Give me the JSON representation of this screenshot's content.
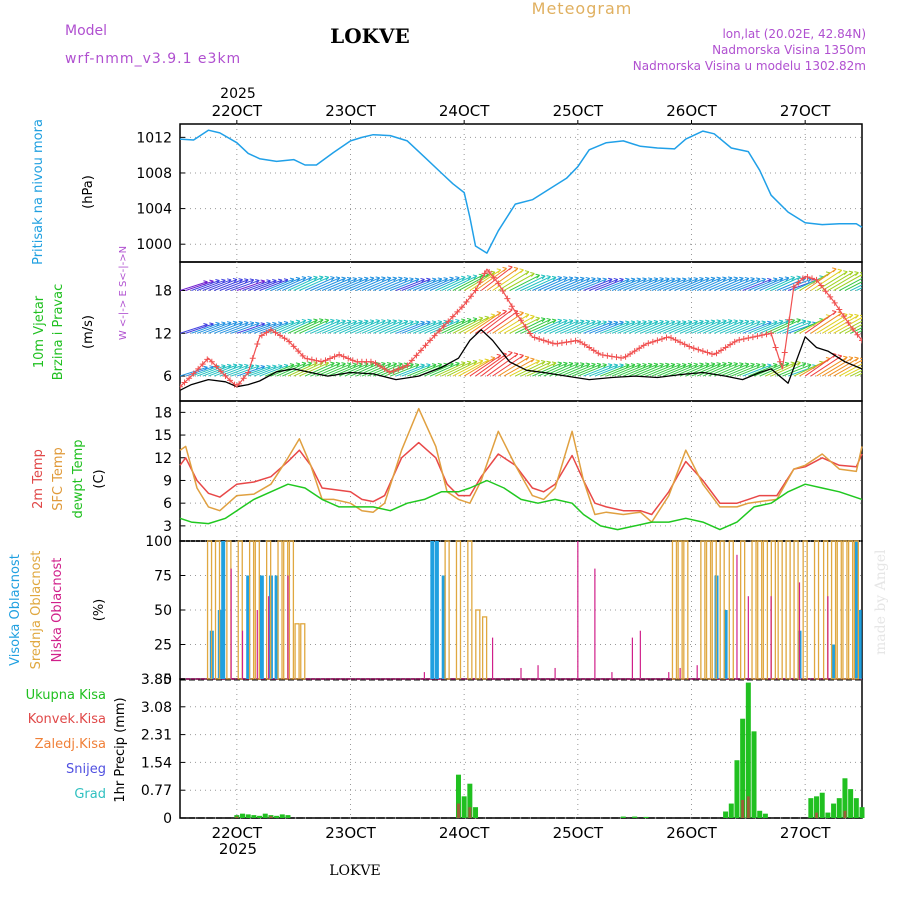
{
  "chart_data": {
    "type": "line",
    "header": {
      "model_label": "Model",
      "model_name": "wrf-nmm_v3.9.1 e3km",
      "station": "LOKVE",
      "title": "Meteogram",
      "lonlat": "lon,lat (20.02E, 42.84N)",
      "altitude": "Nadmorska Visina 1350m",
      "model_altitude": "Nadmorska Visina u modelu 1302.82m",
      "year": "2025",
      "signature": "made by Angel"
    },
    "time": {
      "start_day": 21.5,
      "end_day": 27.5,
      "month": "OCT"
    },
    "dates": [
      "22OCT",
      "23OCT",
      "24OCT",
      "25OCT",
      "26OCT",
      "27OCT"
    ],
    "pressure": {
      "label": "Pritisak na nivou mora",
      "unit": "(hPa)",
      "ylim": [
        998,
        1013.5
      ],
      "ticks": [
        1000,
        1004,
        1008,
        1012
      ],
      "t": [
        21.5,
        21.62,
        21.75,
        21.85,
        22.0,
        22.1,
        22.2,
        22.35,
        22.5,
        22.6,
        22.7,
        22.85,
        23.0,
        23.1,
        23.2,
        23.35,
        23.5,
        23.65,
        23.8,
        23.9,
        24.0,
        24.05,
        24.1,
        24.2,
        24.3,
        24.45,
        24.6,
        24.75,
        24.9,
        25.0,
        25.1,
        25.25,
        25.4,
        25.55,
        25.7,
        25.85,
        25.95,
        26.1,
        26.2,
        26.35,
        26.5,
        26.6,
        26.7,
        26.85,
        27.0,
        27.15,
        27.3,
        27.45,
        27.5
      ],
      "values": [
        1011.8,
        1011.7,
        1012.8,
        1012.5,
        1011.4,
        1010.2,
        1009.6,
        1009.3,
        1009.5,
        1008.9,
        1008.9,
        1010.3,
        1011.6,
        1012.0,
        1012.3,
        1012.2,
        1011.6,
        1009.8,
        1008.0,
        1006.8,
        1005.8,
        1003.0,
        999.8,
        999.0,
        1001.5,
        1004.5,
        1005.0,
        1006.2,
        1007.4,
        1008.7,
        1010.6,
        1011.4,
        1011.6,
        1011.0,
        1010.8,
        1010.7,
        1011.8,
        1012.7,
        1012.4,
        1010.8,
        1010.4,
        1008.3,
        1005.5,
        1003.6,
        1002.4,
        1002.2,
        1002.3,
        1002.3,
        1001.9
      ]
    },
    "wind": {
      "label_line1": "10m Vjetar",
      "label_line2": "Brzina i Pravac",
      "unit": "(m/s)",
      "compass": "W <-|-> E   S<-|->N",
      "ylim": [
        2.5,
        22
      ],
      "ticks": [
        6,
        12,
        18
      ],
      "speed": {
        "t": [
          21.5,
          21.6,
          21.75,
          21.9,
          22.0,
          22.1,
          22.2,
          22.35,
          22.5,
          22.65,
          22.8,
          23.0,
          23.2,
          23.4,
          23.6,
          23.8,
          23.95,
          24.05,
          24.15,
          24.25,
          24.4,
          24.55,
          24.7,
          24.9,
          25.1,
          25.3,
          25.5,
          25.7,
          25.9,
          26.1,
          26.3,
          26.45,
          26.6,
          26.7,
          26.85,
          27.0,
          27.1,
          27.2,
          27.35,
          27.5
        ],
        "values": [
          4.0,
          4.8,
          5.5,
          5.2,
          4.5,
          4.8,
          5.3,
          6.6,
          7.0,
          6.5,
          6.0,
          6.5,
          6.3,
          5.5,
          6.0,
          7.2,
          8.5,
          11.0,
          12.5,
          11.0,
          8.0,
          6.8,
          6.5,
          6.0,
          5.5,
          5.8,
          6.0,
          5.8,
          6.2,
          6.5,
          6.0,
          5.5,
          6.5,
          7.0,
          5.0,
          11.5,
          10.0,
          9.5,
          8.0,
          7.0
        ]
      },
      "gust": {
        "t": [
          21.5,
          21.6,
          21.75,
          21.9,
          22.0,
          22.1,
          22.2,
          22.3,
          22.45,
          22.6,
          22.75,
          22.9,
          23.05,
          23.2,
          23.35,
          23.5,
          23.7,
          23.85,
          24.0,
          24.1,
          24.2,
          24.3,
          24.45,
          24.6,
          24.8,
          25.0,
          25.2,
          25.4,
          25.6,
          25.8,
          26.0,
          26.2,
          26.4,
          26.55,
          26.7,
          26.8,
          26.9,
          27.0,
          27.1,
          27.25,
          27.4,
          27.5
        ],
        "values": [
          4.5,
          6.0,
          8.5,
          6.0,
          4.5,
          6.5,
          11.5,
          12.5,
          11.0,
          8.5,
          8.0,
          9.0,
          8.0,
          8.0,
          6.5,
          7.5,
          11.0,
          13.5,
          16.0,
          18.0,
          21.0,
          19.0,
          15.0,
          11.5,
          10.5,
          11.0,
          9.0,
          8.5,
          10.5,
          11.5,
          10.0,
          9.0,
          11.0,
          11.5,
          12.0,
          7.0,
          18.5,
          20.0,
          19.5,
          16.5,
          13.0,
          11.0
        ]
      }
    },
    "temperature": {
      "unit": "(C)",
      "ylim": [
        1,
        19.5
      ],
      "ticks": [
        3,
        6,
        9,
        12,
        15,
        18
      ],
      "series": [
        {
          "name": "2m Temp",
          "color": "#e84848",
          "t": [
            21.5,
            21.55,
            21.65,
            21.75,
            21.85,
            22.0,
            22.15,
            22.3,
            22.45,
            22.55,
            22.65,
            22.75,
            22.85,
            23.0,
            23.1,
            23.2,
            23.3,
            23.45,
            23.6,
            23.75,
            23.85,
            23.95,
            24.05,
            24.15,
            24.3,
            24.45,
            24.6,
            24.7,
            24.8,
            24.95,
            25.05,
            25.15,
            25.25,
            25.4,
            25.55,
            25.65,
            25.8,
            25.95,
            26.1,
            26.25,
            26.4,
            26.5,
            26.6,
            26.75,
            26.9,
            27.0,
            27.15,
            27.3,
            27.45,
            27.5
          ],
          "values": [
            11.0,
            12.0,
            9.0,
            7.3,
            6.8,
            8.5,
            8.8,
            9.5,
            11.5,
            13.0,
            11.0,
            8.0,
            7.8,
            7.5,
            6.5,
            6.2,
            7.0,
            12.0,
            14.0,
            12.0,
            8.5,
            7.0,
            7.0,
            9.5,
            12.5,
            11.0,
            8.0,
            7.5,
            8.5,
            12.3,
            9.0,
            6.0,
            5.5,
            5.0,
            5.0,
            4.5,
            7.5,
            11.5,
            9.0,
            6.0,
            6.0,
            6.5,
            7.0,
            7.0,
            10.5,
            10.8,
            12.0,
            11.0,
            10.8,
            12.5
          ]
        },
        {
          "name": "SFC Temp",
          "color": "#e0a040",
          "t": [
            21.5,
            21.55,
            21.65,
            21.75,
            21.85,
            22.0,
            22.15,
            22.3,
            22.45,
            22.55,
            22.65,
            22.75,
            22.85,
            23.0,
            23.1,
            23.2,
            23.3,
            23.45,
            23.6,
            23.75,
            23.85,
            23.95,
            24.05,
            24.15,
            24.3,
            24.45,
            24.6,
            24.7,
            24.8,
            24.95,
            25.05,
            25.15,
            25.25,
            25.4,
            25.55,
            25.65,
            25.8,
            25.95,
            26.1,
            26.25,
            26.4,
            26.5,
            26.6,
            26.75,
            26.9,
            27.0,
            27.15,
            27.3,
            27.45,
            27.5
          ],
          "values": [
            13.0,
            13.5,
            8.0,
            5.5,
            5.0,
            7.0,
            7.2,
            8.5,
            12.0,
            14.5,
            11.0,
            6.5,
            6.5,
            6.0,
            5.0,
            4.8,
            6.0,
            13.0,
            18.5,
            13.5,
            7.5,
            6.5,
            6.0,
            9.0,
            15.5,
            11.0,
            7.0,
            6.5,
            8.0,
            15.5,
            9.0,
            4.5,
            4.8,
            4.5,
            4.8,
            3.5,
            7.0,
            13.0,
            8.5,
            5.5,
            5.5,
            6.0,
            6.2,
            6.5,
            10.5,
            11.0,
            12.5,
            10.5,
            10.2,
            13.5
          ]
        },
        {
          "name": "dewpt Temp",
          "color": "#20c820",
          "t": [
            21.5,
            21.6,
            21.75,
            21.9,
            22.0,
            22.15,
            22.3,
            22.45,
            22.6,
            22.75,
            22.9,
            23.05,
            23.2,
            23.35,
            23.5,
            23.65,
            23.8,
            23.95,
            24.05,
            24.2,
            24.35,
            24.5,
            24.65,
            24.8,
            24.95,
            25.05,
            25.2,
            25.35,
            25.5,
            25.65,
            25.8,
            25.95,
            26.1,
            26.25,
            26.4,
            26.55,
            26.7,
            26.85,
            27.0,
            27.15,
            27.3,
            27.5
          ],
          "values": [
            4.0,
            3.5,
            3.3,
            4.0,
            5.0,
            6.5,
            7.5,
            8.5,
            8.0,
            6.5,
            5.5,
            5.5,
            5.5,
            5.0,
            6.0,
            6.5,
            7.5,
            7.5,
            8.0,
            9.0,
            8.0,
            6.5,
            6.0,
            6.5,
            6.0,
            4.5,
            3.0,
            2.5,
            3.0,
            3.5,
            3.5,
            4.0,
            3.5,
            2.5,
            3.5,
            5.5,
            6.0,
            7.5,
            8.5,
            8.0,
            7.5,
            6.5
          ]
        }
      ]
    },
    "cloud": {
      "unit": "(%)",
      "ylim": [
        0,
        100
      ],
      "ticks": [
        0,
        25,
        50,
        75,
        100
      ],
      "series": [
        {
          "name": "Visoka Oblacnost",
          "color": "#20a0e0",
          "bars": [
            [
              21.78,
              35
            ],
            [
              21.85,
              50
            ],
            [
              21.88,
              100
            ],
            [
              22.1,
              75
            ],
            [
              22.22,
              75
            ],
            [
              22.3,
              75
            ],
            [
              22.35,
              75
            ],
            [
              23.72,
              100
            ],
            [
              23.76,
              100
            ],
            [
              23.82,
              75
            ],
            [
              26.22,
              75
            ],
            [
              26.3,
              50
            ],
            [
              26.95,
              35
            ],
            [
              27.25,
              25
            ],
            [
              27.45,
              100
            ],
            [
              27.48,
              50
            ]
          ]
        },
        {
          "name": "Srednja Oblacnost",
          "color": "#e0a840",
          "bars": [
            [
              21.76,
              100
            ],
            [
              21.83,
              100
            ],
            [
              21.93,
              100
            ],
            [
              22.03,
              100
            ],
            [
              22.13,
              100
            ],
            [
              22.18,
              100
            ],
            [
              22.28,
              100
            ],
            [
              22.38,
              100
            ],
            [
              22.43,
              100
            ],
            [
              22.48,
              100
            ],
            [
              22.53,
              40
            ],
            [
              22.58,
              40
            ],
            [
              23.85,
              100
            ],
            [
              23.95,
              100
            ],
            [
              24.05,
              100
            ],
            [
              24.12,
              50
            ],
            [
              24.18,
              45
            ],
            [
              25.85,
              100
            ],
            [
              25.9,
              100
            ],
            [
              25.95,
              100
            ],
            [
              26.1,
              100
            ],
            [
              26.15,
              100
            ],
            [
              26.2,
              100
            ],
            [
              26.27,
              100
            ],
            [
              26.35,
              100
            ],
            [
              26.45,
              100
            ],
            [
              26.55,
              100
            ],
            [
              26.6,
              100
            ],
            [
              26.65,
              100
            ],
            [
              26.72,
              100
            ],
            [
              26.78,
              100
            ],
            [
              26.85,
              100
            ],
            [
              26.92,
              100
            ],
            [
              27.0,
              100
            ],
            [
              27.1,
              100
            ],
            [
              27.18,
              100
            ],
            [
              27.25,
              100
            ],
            [
              27.3,
              100
            ],
            [
              27.35,
              100
            ],
            [
              27.4,
              100
            ],
            [
              27.45,
              100
            ]
          ]
        },
        {
          "name": "Niska Oblacnost",
          "color": "#d0208a",
          "bars": [
            [
              21.95,
              80
            ],
            [
              22.05,
              35
            ],
            [
              22.18,
              50
            ],
            [
              22.28,
              60
            ],
            [
              22.45,
              75
            ],
            [
              23.65,
              5
            ],
            [
              24.25,
              30
            ],
            [
              24.5,
              8
            ],
            [
              24.65,
              10
            ],
            [
              24.8,
              8
            ],
            [
              25.0,
              100
            ],
            [
              25.15,
              80
            ],
            [
              25.3,
              5
            ],
            [
              25.48,
              30
            ],
            [
              25.55,
              35
            ],
            [
              25.8,
              5
            ],
            [
              25.9,
              8
            ],
            [
              26.05,
              10
            ],
            [
              26.4,
              90
            ],
            [
              26.5,
              60
            ],
            [
              26.7,
              60
            ],
            [
              26.95,
              70
            ],
            [
              27.2,
              60
            ]
          ]
        }
      ]
    },
    "precip": {
      "unit": "1hr Precip (mm)",
      "ylim": [
        0,
        3.85
      ],
      "ticks": [
        "0",
        "0.77",
        "1.54",
        "2.31",
        "3.08",
        "3.85"
      ],
      "legend": [
        {
          "name": "Ukupna Kisa",
          "color": "#20c020"
        },
        {
          "name": "Konvek.Kisa",
          "color": "#e04848"
        },
        {
          "name": "Zaledj.Kisa",
          "color": "#f08038"
        },
        {
          "name": "Snijeg",
          "color": "#5050e0"
        },
        {
          "name": "Grad",
          "color": "#30c0c0"
        }
      ],
      "total": [
        [
          22.0,
          0.08
        ],
        [
          22.05,
          0.12
        ],
        [
          22.1,
          0.1
        ],
        [
          22.15,
          0.08
        ],
        [
          22.2,
          0.06
        ],
        [
          22.25,
          0.12
        ],
        [
          22.3,
          0.08
        ],
        [
          22.35,
          0.06
        ],
        [
          22.4,
          0.1
        ],
        [
          22.45,
          0.08
        ],
        [
          23.95,
          1.2
        ],
        [
          24.0,
          0.6
        ],
        [
          24.05,
          0.95
        ],
        [
          24.1,
          0.3
        ],
        [
          25.4,
          0.04
        ],
        [
          25.5,
          0.04
        ],
        [
          25.6,
          0.03
        ],
        [
          26.3,
          0.18
        ],
        [
          26.35,
          0.4
        ],
        [
          26.4,
          1.6
        ],
        [
          26.45,
          2.75
        ],
        [
          26.5,
          3.75
        ],
        [
          26.55,
          2.4
        ],
        [
          26.6,
          0.2
        ],
        [
          26.65,
          0.12
        ],
        [
          27.05,
          0.55
        ],
        [
          27.1,
          0.6
        ],
        [
          27.15,
          0.7
        ],
        [
          27.2,
          0.15
        ],
        [
          27.25,
          0.4
        ],
        [
          27.3,
          0.55
        ],
        [
          27.35,
          1.1
        ],
        [
          27.4,
          0.8
        ],
        [
          27.45,
          0.55
        ],
        [
          27.5,
          0.3
        ]
      ],
      "convective": [
        [
          22.0,
          0.04
        ],
        [
          22.3,
          0.05
        ],
        [
          23.95,
          0.4
        ],
        [
          24.05,
          0.3
        ],
        [
          26.45,
          0.5
        ],
        [
          26.5,
          0.6
        ],
        [
          27.1,
          0.15
        ],
        [
          27.35,
          0.2
        ]
      ]
    }
  }
}
